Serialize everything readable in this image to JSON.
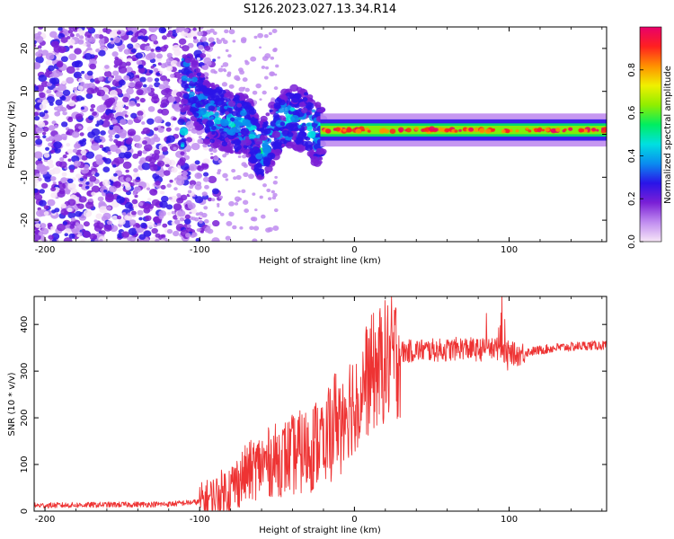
{
  "title": "S126.2023.027.13.34.R14",
  "chart_data": [
    {
      "type": "heatmap",
      "xlabel": "Height of straight line (km)",
      "ylabel": "Frequency (Hz)",
      "xlim": [
        -207,
        163
      ],
      "ylim": [
        -25,
        25
      ],
      "xticks": [
        -200,
        -100,
        0,
        100
      ],
      "yticks": [
        -20,
        -10,
        0,
        10,
        20
      ],
      "colorbar": {
        "label": "Normalized spectral amplitude",
        "range": [
          0.0,
          1.0
        ],
        "ticks": [
          0.0,
          0.2,
          0.4,
          0.6,
          0.8
        ],
        "colors": [
          "#f7e6f7",
          "#c08cf0",
          "#7a1fd6",
          "#2a14e8",
          "#0a8cf0",
          "#00e0e0",
          "#00ee60",
          "#90ee00",
          "#f0f000",
          "#ff9000",
          "#ff2020",
          "#e8006a"
        ]
      },
      "carrier": {
        "frequency_hz": 1,
        "x_start_km": -25,
        "x_end_km": 163,
        "description_points": [
          [
            -110,
            14
          ],
          [
            -95,
            5
          ],
          [
            -80,
            3
          ],
          [
            -70,
            2
          ],
          [
            -60,
            -4
          ],
          [
            -50,
            2
          ],
          [
            -40,
            4
          ],
          [
            -30,
            3
          ],
          [
            -25,
            0
          ],
          [
            -15,
            1.5
          ],
          [
            0,
            1.5
          ],
          [
            20,
            1
          ],
          [
            100,
            1
          ],
          [
            163,
            1
          ]
        ]
      },
      "grid": false
    },
    {
      "type": "line",
      "xlabel": "Height of straight line (km)",
      "ylabel": "SNR (10 * v/v)",
      "xlim": [
        -207,
        163
      ],
      "ylim": [
        0,
        460
      ],
      "xticks": [
        -200,
        -100,
        0,
        100
      ],
      "yticks": [
        0,
        100,
        200,
        300,
        400
      ],
      "series": [
        {
          "color": "#ee3333",
          "x": [
            -207,
            -180,
            -150,
            -120,
            -100,
            -90,
            -80,
            -70,
            -60,
            -50,
            -40,
            -30,
            -20,
            -10,
            0,
            10,
            20,
            30,
            40,
            50,
            60,
            70,
            80,
            90,
            95,
            100,
            105,
            110,
            120,
            130,
            140,
            150,
            163
          ],
          "y": [
            12,
            13,
            14,
            15,
            20,
            30,
            50,
            80,
            100,
            110,
            120,
            130,
            160,
            210,
            240,
            290,
            320,
            340,
            345,
            345,
            345,
            350,
            345,
            350,
            345,
            340,
            335,
            340,
            345,
            350,
            352,
            355,
            355
          ]
        }
      ],
      "grid": false
    }
  ]
}
